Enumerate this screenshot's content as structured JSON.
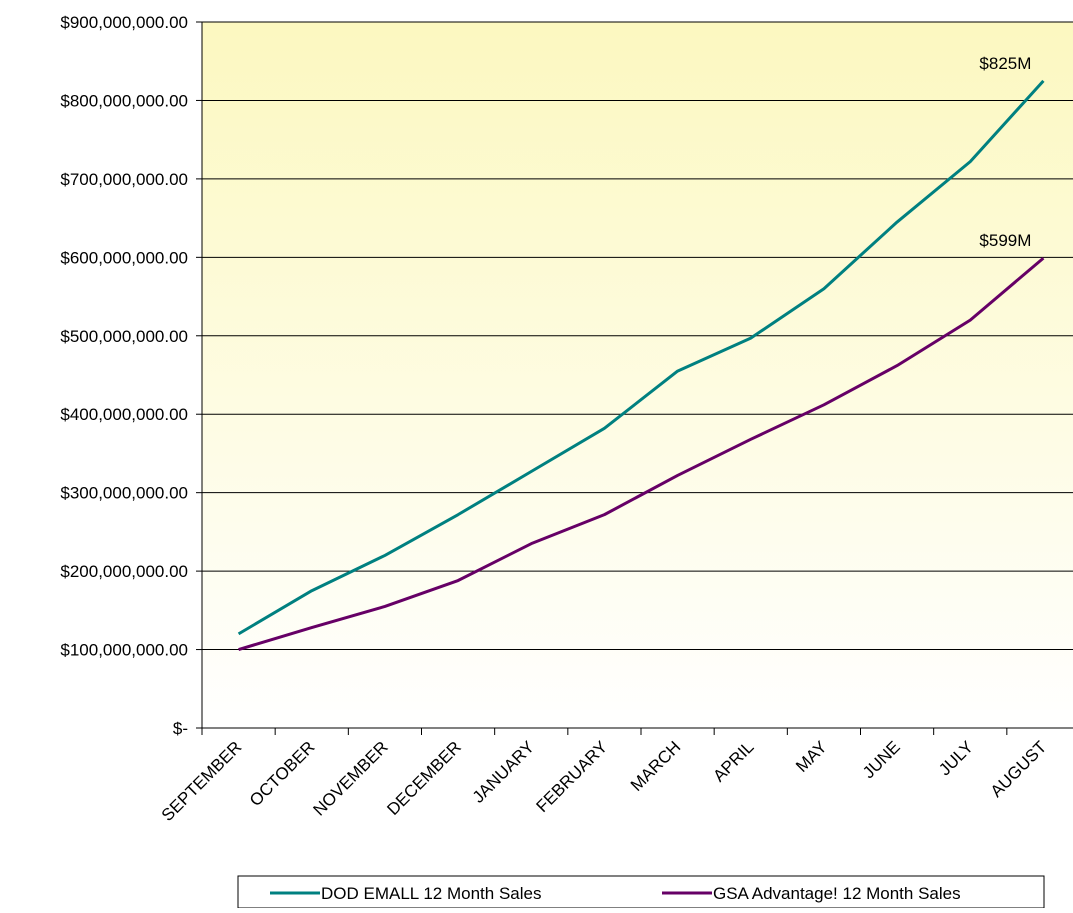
{
  "chart_data": {
    "type": "line",
    "title": "",
    "xlabel": "",
    "ylabel": "",
    "categories": [
      "SEPTEMBER",
      "OCTOBER",
      "NOVEMBER",
      "DECEMBER",
      "JANUARY",
      "FEBRUARY",
      "MARCH",
      "APRIL",
      "MAY",
      "JUNE",
      "JULY",
      "AUGUST"
    ],
    "ylim": [
      0,
      900000000
    ],
    "y_ticks": [
      0,
      100000000,
      200000000,
      300000000,
      400000000,
      500000000,
      600000000,
      700000000,
      800000000,
      900000000
    ],
    "y_tick_labels": [
      "$-",
      "$100,000,000.00",
      "$200,000,000.00",
      "$300,000,000.00",
      "$400,000,000.00",
      "$500,000,000.00",
      "$600,000,000.00",
      "$700,000,000.00",
      "$800,000,000.00",
      "$900,000,000.00"
    ],
    "grid": true,
    "background": "yellow gradient fading to white toward bottom",
    "legend_position": "bottom",
    "series": [
      {
        "name": "DOD EMALL 12 Month Sales",
        "color": "#008080",
        "values": [
          120000000,
          175000000,
          220000000,
          272000000,
          327000000,
          382000000,
          455000000,
          497000000,
          560000000,
          645000000,
          722000000,
          825000000
        ],
        "end_label": "$825M"
      },
      {
        "name": "GSA Advantage! 12 Month Sales",
        "color": "#660066",
        "values": [
          100000000,
          128000000,
          155000000,
          188000000,
          235000000,
          272000000,
          322000000,
          368000000,
          412000000,
          462000000,
          520000000,
          599000000
        ],
        "end_label": "$599M"
      }
    ]
  }
}
